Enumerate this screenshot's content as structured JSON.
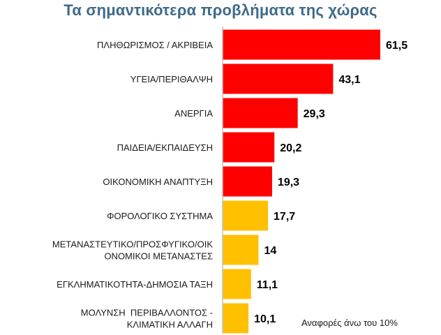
{
  "chart_data": {
    "type": "bar",
    "orientation": "horizontal",
    "title": "Τα σημαντικότερα προβλήματα της χώρας",
    "categories": [
      "ΠΛΗΘΩΡΙΣΜΟΣ / ΑΚΡΙΒΕΙΑ",
      "ΥΓΕΙΑ/ΠΕΡΙΘΑΛΨΗ",
      "ΑΝΕΡΓΙΑ",
      "ΠΑΙΔΕΙΑ/ΕΚΠΑΙΔΕΥΣΗ",
      "ΟΙΚΟΝΟΜΙΚΗ ΑΝΑΠΤΥΞΗ",
      "ΦΟΡΟΛΟΓΙΚΟ ΣΥΣΤΗΜΑ",
      [
        "ΜΕΤΑΝΑΣΤΕΥΤΙΚΟ/ΠΡΟΣΦΥΓΙΚΟ/ΟΙΚ",
        "ΟΝΟΜΙΚΟΙ ΜΕΤΑΝΑΣΤΕΣ"
      ],
      "ΕΓΚΛΗΜΑΤΙΚΟΤΗΤΑ-ΔΗΜΟΣΙΑ ΤΑΞΗ",
      [
        "ΜΟΛΥΝΣΗ  ΠΕΡΙΒΑΛΛΟΝΤΟΣ -",
        "ΚΛΙΜΑΤΙΚΗ ΑΛΛΑΓΗ"
      ]
    ],
    "values": [
      61.5,
      43.1,
      29.3,
      20.2,
      19.3,
      17.7,
      14,
      11.1,
      10.1
    ],
    "value_labels": [
      "61,5",
      "43,1",
      "29,3",
      "20,2",
      "19,3",
      "17,7",
      "14",
      "11,1",
      "10,1"
    ],
    "colors": [
      "#FF0000",
      "#FF0000",
      "#FF0000",
      "#FF0000",
      "#FF0000",
      "#FFC000",
      "#FFC000",
      "#FFC000",
      "#FFC000"
    ],
    "axis_color": "#BFBFBF",
    "xlim": [
      0,
      70
    ],
    "grid": false,
    "legend": "none",
    "annotation": "Αναφορές άνω του 10%"
  }
}
